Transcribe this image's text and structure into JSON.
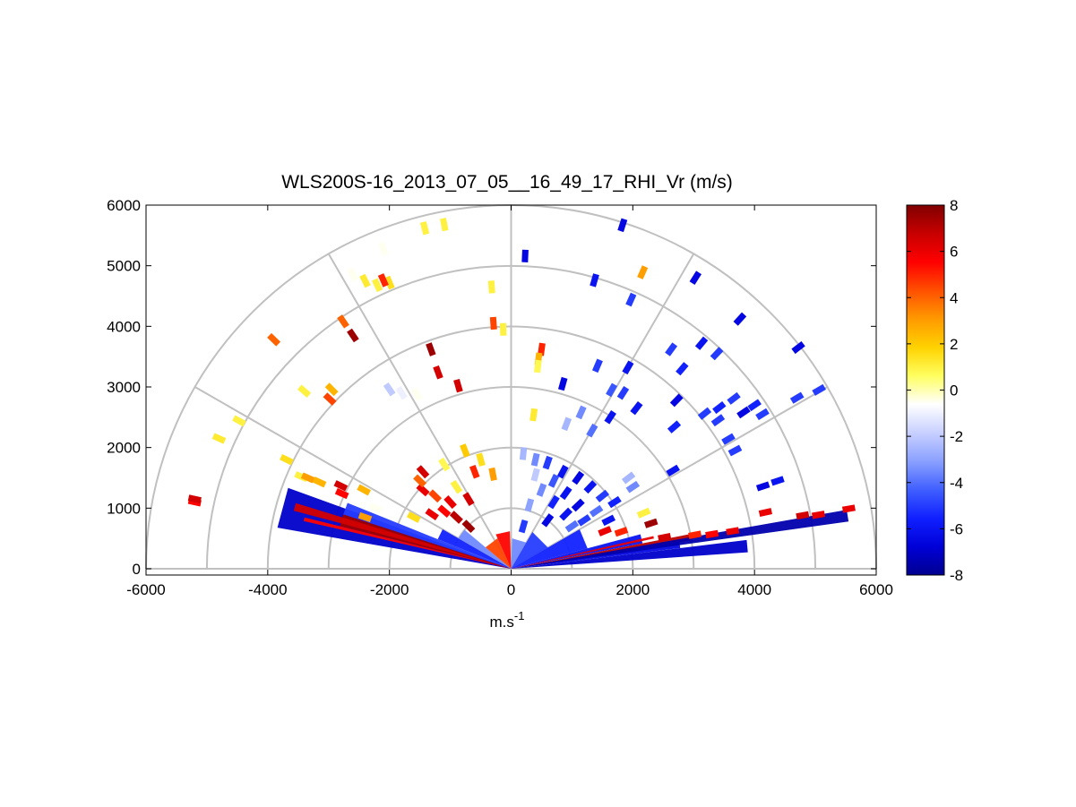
{
  "chart_data": {
    "type": "polar-rhi-scatter",
    "title": "WLS200S-16_2013_07_05__16_49_17_RHI_Vr (m/s)",
    "xlabel": "m.s",
    "xlabel_superscript": "-1",
    "ylabel": "",
    "xlim": [
      -6000,
      6000
    ],
    "ylim": [
      -150,
      6000
    ],
    "x_ticks": [
      -6000,
      -4000,
      -2000,
      0,
      2000,
      4000,
      6000
    ],
    "x_tick_labels": [
      "-6000",
      "-4000",
      "-2000",
      "0",
      "2000",
      "4000",
      "6000"
    ],
    "y_ticks": [
      0,
      1000,
      2000,
      3000,
      4000,
      5000,
      6000
    ],
    "y_tick_labels": [
      "0",
      "1000",
      "2000",
      "3000",
      "4000",
      "5000",
      "6000"
    ],
    "polar_grid": {
      "rings": [
        1000,
        2000,
        3000,
        4000,
        5000,
        6000
      ],
      "spokes_deg": [
        0,
        30,
        60,
        90,
        120,
        150,
        180
      ]
    },
    "colorbar": {
      "min": -8,
      "max": 8,
      "ticks": [
        -8,
        -6,
        -4,
        -2,
        0,
        2,
        4,
        6,
        8
      ],
      "tick_labels": [
        "-8",
        "-6",
        "-4",
        "-2",
        "0",
        "2",
        "4",
        "6",
        "8"
      ],
      "colors": [
        "#00008f",
        "#0000d8",
        "#1020ff",
        "#4060ff",
        "#8aa0ff",
        "#c8d0ff",
        "#ffffff",
        "#ffff60",
        "#ffd200",
        "#ff9a00",
        "#ff5000",
        "#ff0000",
        "#c80000",
        "#800000"
      ]
    },
    "points": [
      {
        "x": -2400,
        "y": 4750,
        "v": 1.2
      },
      {
        "x": -2200,
        "y": 4680,
        "v": 1.0
      },
      {
        "x": -2000,
        "y": 4720,
        "v": 1.5
      },
      {
        "x": -2600,
        "y": 4850,
        "v": -0.5
      },
      {
        "x": -2100,
        "y": 4760,
        "v": 5.0
      },
      {
        "x": -1420,
        "y": 5620,
        "v": 1.0
      },
      {
        "x": -1100,
        "y": 5680,
        "v": 1.0
      },
      {
        "x": -2100,
        "y": 5280,
        "v": -0.5
      },
      {
        "x": -3900,
        "y": 3780,
        "v": 4.0
      },
      {
        "x": -2760,
        "y": 4080,
        "v": 4.0
      },
      {
        "x": -2600,
        "y": 3850,
        "v": 7.5
      },
      {
        "x": -3400,
        "y": 2930,
        "v": 1.0
      },
      {
        "x": -2950,
        "y": 2960,
        "v": 2.5
      },
      {
        "x": -2980,
        "y": 2800,
        "v": 4.5
      },
      {
        "x": -2000,
        "y": 2960,
        "v": -2.0
      },
      {
        "x": -1550,
        "y": 2880,
        "v": -0.5
      },
      {
        "x": -1320,
        "y": 3620,
        "v": 7.5
      },
      {
        "x": -1200,
        "y": 3240,
        "v": 6.5
      },
      {
        "x": -870,
        "y": 3020,
        "v": 6.5
      },
      {
        "x": -320,
        "y": 4650,
        "v": 1.0
      },
      {
        "x": -290,
        "y": 4050,
        "v": 4.5
      },
      {
        "x": -130,
        "y": 3950,
        "v": 1.0
      },
      {
        "x": 230,
        "y": 5160,
        "v": -6.5
      },
      {
        "x": 500,
        "y": 3620,
        "v": 5.0
      },
      {
        "x": 450,
        "y": 3460,
        "v": 2.5
      },
      {
        "x": 440,
        "y": 3340,
        "v": 0.8
      },
      {
        "x": 370,
        "y": 2540,
        "v": 1.2
      },
      {
        "x": 850,
        "y": 3050,
        "v": -6.5
      },
      {
        "x": 1830,
        "y": 5670,
        "v": -6.5
      },
      {
        "x": 2160,
        "y": 4890,
        "v": 3.0
      },
      {
        "x": 1370,
        "y": 4760,
        "v": -6.0
      },
      {
        "x": 1970,
        "y": 4440,
        "v": -5.0
      },
      {
        "x": 3030,
        "y": 4800,
        "v": -6.5
      },
      {
        "x": 3760,
        "y": 4120,
        "v": -6.5
      },
      {
        "x": 4720,
        "y": 3650,
        "v": -6.5
      },
      {
        "x": 1420,
        "y": 3350,
        "v": -5.0
      },
      {
        "x": 1920,
        "y": 3320,
        "v": -6.0
      },
      {
        "x": 2630,
        "y": 3620,
        "v": -5.0
      },
      {
        "x": 2810,
        "y": 3300,
        "v": -5.5
      },
      {
        "x": 3130,
        "y": 3720,
        "v": -6.0
      },
      {
        "x": 3380,
        "y": 3550,
        "v": -5.0
      },
      {
        "x": 4700,
        "y": 2820,
        "v": -5.0
      },
      {
        "x": 5060,
        "y": 2950,
        "v": -5.0
      },
      {
        "x": 3660,
        "y": 2810,
        "v": -5.0
      },
      {
        "x": 3820,
        "y": 2580,
        "v": -6.5
      },
      {
        "x": 4000,
        "y": 2700,
        "v": -5.5
      },
      {
        "x": 4130,
        "y": 2550,
        "v": -5.0
      },
      {
        "x": 1840,
        "y": 2900,
        "v": -5.0
      },
      {
        "x": 1630,
        "y": 2500,
        "v": -6.0
      },
      {
        "x": 2060,
        "y": 2650,
        "v": -6.0
      },
      {
        "x": 2720,
        "y": 2780,
        "v": -6.5
      },
      {
        "x": 3420,
        "y": 2660,
        "v": -5.5
      },
      {
        "x": 3400,
        "y": 2450,
        "v": -5.0
      },
      {
        "x": 2680,
        "y": 2340,
        "v": -5.5
      },
      {
        "x": 1150,
        "y": 2580,
        "v": -3.5
      },
      {
        "x": 1330,
        "y": 2280,
        "v": -4.0
      },
      {
        "x": 910,
        "y": 2390,
        "v": -2.5
      },
      {
        "x": 3180,
        "y": 2560,
        "v": -5.0
      },
      {
        "x": 3570,
        "y": 2140,
        "v": -5.0
      },
      {
        "x": 3680,
        "y": 1950,
        "v": -5.0
      },
      {
        "x": 4380,
        "y": 1450,
        "v": -6.0
      },
      {
        "x": 4140,
        "y": 1360,
        "v": -6.5
      },
      {
        "x": 2660,
        "y": 1620,
        "v": -6.0
      },
      {
        "x": 1930,
        "y": 1500,
        "v": -2.5
      },
      {
        "x": 2000,
        "y": 1350,
        "v": -3.5
      },
      {
        "x": 2180,
        "y": 920,
        "v": 1.0
      },
      {
        "x": 2300,
        "y": 750,
        "v": 7.5
      },
      {
        "x": -5200,
        "y": 1100,
        "v": 5.5
      },
      {
        "x": -4800,
        "y": 2150,
        "v": 1.2
      },
      {
        "x": -4470,
        "y": 2440,
        "v": 1.0
      },
      {
        "x": -3690,
        "y": 1800,
        "v": 1.5
      },
      {
        "x": -3450,
        "y": 1520,
        "v": 1.0
      },
      {
        "x": -3340,
        "y": 1500,
        "v": 3.0
      },
      {
        "x": -3150,
        "y": 1430,
        "v": 2.5
      },
      {
        "x": -2800,
        "y": 1370,
        "v": 6.5
      },
      {
        "x": -2780,
        "y": 1240,
        "v": 5.5
      },
      {
        "x": -2420,
        "y": 1300,
        "v": 2.5
      },
      {
        "x": -2220,
        "y": 1000,
        "v": -0.5
      },
      {
        "x": -2400,
        "y": 850,
        "v": 3.0
      },
      {
        "x": 4180,
        "y": 930,
        "v": 6.0
      },
      {
        "x": 4790,
        "y": 880,
        "v": 6.5
      },
      {
        "x": 5050,
        "y": 890,
        "v": 6.0
      },
      {
        "x": 5550,
        "y": 990,
        "v": 6.0
      },
      {
        "x": 3640,
        "y": 620,
        "v": 6.0
      },
      {
        "x": 3300,
        "y": 570,
        "v": 5.5
      },
      {
        "x": 3020,
        "y": 560,
        "v": 5.0
      },
      {
        "x": 2520,
        "y": 520,
        "v": 6.5
      },
      {
        "x": 1810,
        "y": 610,
        "v": 5.0
      },
      {
        "x": 1540,
        "y": 620,
        "v": 6.0
      },
      {
        "x": -1450,
        "y": 1300,
        "v": 6.0
      },
      {
        "x": -1250,
        "y": 1200,
        "v": 4.5
      },
      {
        "x": -900,
        "y": 1350,
        "v": 1.0
      },
      {
        "x": -760,
        "y": 1950,
        "v": 2.0
      },
      {
        "x": -500,
        "y": 1800,
        "v": 1.5
      },
      {
        "x": -300,
        "y": 1560,
        "v": 3.0
      },
      {
        "x": -1100,
        "y": 1720,
        "v": 0.8
      },
      {
        "x": -1500,
        "y": 1450,
        "v": 4.0
      },
      {
        "x": -700,
        "y": 1150,
        "v": 6.5
      },
      {
        "x": -1100,
        "y": 950,
        "v": 5.5
      },
      {
        "x": -1300,
        "y": 900,
        "v": 6.0
      },
      {
        "x": -900,
        "y": 850,
        "v": 7.0
      },
      {
        "x": -1600,
        "y": 850,
        "v": 1.5
      },
      {
        "x": -700,
        "y": 700,
        "v": 7.5
      },
      {
        "x": -1000,
        "y": 1100,
        "v": 6.0
      },
      {
        "x": -1450,
        "y": 1600,
        "v": 6.5
      },
      {
        "x": -600,
        "y": 1600,
        "v": 5.0
      },
      {
        "x": 200,
        "y": 1900,
        "v": -2.5
      },
      {
        "x": 400,
        "y": 1800,
        "v": -3.5
      },
      {
        "x": 600,
        "y": 1750,
        "v": -5.0
      },
      {
        "x": 850,
        "y": 1600,
        "v": -6.0
      },
      {
        "x": 1100,
        "y": 1500,
        "v": -6.5
      },
      {
        "x": 1300,
        "y": 1350,
        "v": -6.0
      },
      {
        "x": 1500,
        "y": 1200,
        "v": -5.0
      },
      {
        "x": 700,
        "y": 1450,
        "v": -4.5
      },
      {
        "x": 900,
        "y": 1250,
        "v": -6.0
      },
      {
        "x": 1100,
        "y": 1050,
        "v": -6.5
      },
      {
        "x": 500,
        "y": 1300,
        "v": -3.5
      },
      {
        "x": 700,
        "y": 1100,
        "v": -5.5
      },
      {
        "x": 900,
        "y": 900,
        "v": -6.0
      },
      {
        "x": 1200,
        "y": 800,
        "v": -5.0
      },
      {
        "x": 1400,
        "y": 950,
        "v": -4.0
      },
      {
        "x": 600,
        "y": 800,
        "v": -6.5
      },
      {
        "x": 300,
        "y": 1050,
        "v": -3.0
      },
      {
        "x": 200,
        "y": 700,
        "v": -5.0
      },
      {
        "x": 1700,
        "y": 1100,
        "v": -5.5
      },
      {
        "x": 1000,
        "y": 700,
        "v": -4.0
      },
      {
        "x": 400,
        "y": 1550,
        "v": -2.0
      },
      {
        "x": 1600,
        "y": 800,
        "v": -6.0
      },
      {
        "x": -5200,
        "y": 1150,
        "v": 6.5
      },
      {
        "x": -1800,
        "y": 2900,
        "v": -1.0
      },
      {
        "x": 1650,
        "y": 2950,
        "v": -4.5
      }
    ],
    "sweeps": [
      {
        "angle_from_deg": 160,
        "angle_to_deg": 170,
        "range": 3900,
        "v": -7.0
      },
      {
        "angle_from_deg": 158,
        "angle_to_deg": 162,
        "range": 2900,
        "v": -5.0
      },
      {
        "angle_from_deg": 150,
        "angle_to_deg": 158,
        "range": 1300,
        "v": -5.5
      },
      {
        "angle_from_deg": 140,
        "angle_to_deg": 150,
        "range": 1000,
        "v": -3.5
      },
      {
        "angle_from_deg": 162,
        "angle_to_deg": 166,
        "range": 2900,
        "v": 7.5
      },
      {
        "angle_from_deg": 166,
        "angle_to_deg": 167,
        "range": 3500,
        "v": 5.5
      },
      {
        "angle_from_deg": 114,
        "angle_to_deg": 140,
        "range": 550,
        "v": 4.5
      },
      {
        "angle_from_deg": 92,
        "angle_to_deg": 114,
        "range": 620,
        "v": 5.5
      },
      {
        "angle_from_deg": 60,
        "angle_to_deg": 88,
        "range": 500,
        "v": -3.5
      },
      {
        "angle_from_deg": 30,
        "angle_to_deg": 60,
        "range": 700,
        "v": -5.0
      },
      {
        "angle_from_deg": 15,
        "angle_to_deg": 30,
        "range": 1300,
        "v": -5.5
      },
      {
        "angle_from_deg": 11,
        "angle_to_deg": 15,
        "range": 2200,
        "v": -6.0
      },
      {
        "angle_from_deg": 9,
        "angle_to_deg": 11,
        "range": 3000,
        "v": 7.0
      },
      {
        "angle_from_deg": 7,
        "angle_to_deg": 9,
        "range": 2800,
        "v": -6.5
      },
      {
        "angle_from_deg": 12,
        "angle_to_deg": 13,
        "range": 2400,
        "v": 6.0
      },
      {
        "angle_from_deg": 4,
        "angle_to_deg": 7,
        "range": 3900,
        "v": -7.0
      },
      {
        "angle_from_deg": 8,
        "angle_to_deg": 10,
        "range": 5600,
        "v": -7.5
      },
      {
        "angle_from_deg": 163,
        "angle_to_deg": 165,
        "range": 3700,
        "v": 6.5
      }
    ]
  }
}
